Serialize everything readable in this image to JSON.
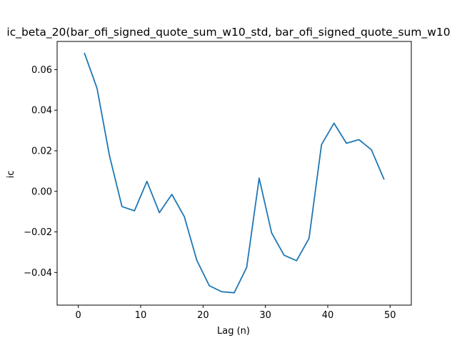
{
  "chart_data": {
    "type": "line",
    "title": "ic_beta_20(bar_ofi_signed_quote_sum_w10_std, bar_ofi_signed_quote_sum_w10",
    "xlabel": "Lag (n)",
    "ylabel": "ic",
    "xlim": [
      -3.4,
      53.4
    ],
    "ylim": [
      -0.0561,
      0.0739
    ],
    "xticks": [
      0,
      10,
      20,
      30,
      40,
      50
    ],
    "yticks": [
      -0.04,
      -0.02,
      0.0,
      0.02,
      0.04,
      0.06
    ],
    "xtick_labels": [
      "0",
      "10",
      "20",
      "30",
      "40",
      "50"
    ],
    "ytick_labels": [
      "−0.04",
      "−0.02",
      "0.00",
      "0.02",
      "0.04",
      "0.06"
    ],
    "grid": false,
    "series": [
      {
        "color": "#1f77b4",
        "x": [
          1,
          3,
          5,
          7,
          9,
          11,
          13,
          15,
          17,
          19,
          21,
          23,
          25,
          27,
          29,
          31,
          33,
          35,
          37,
          39,
          41,
          43,
          45,
          47,
          49
        ],
        "y": [
          0.068,
          0.0508,
          0.0175,
          -0.0075,
          -0.0096,
          0.0049,
          -0.0105,
          -0.0015,
          -0.0125,
          -0.034,
          -0.0465,
          -0.0495,
          -0.05,
          -0.0375,
          0.0065,
          -0.0205,
          -0.0315,
          -0.0342,
          -0.0232,
          0.023,
          0.0336,
          0.0237,
          0.0255,
          0.0205,
          0.0061
        ]
      }
    ]
  }
}
